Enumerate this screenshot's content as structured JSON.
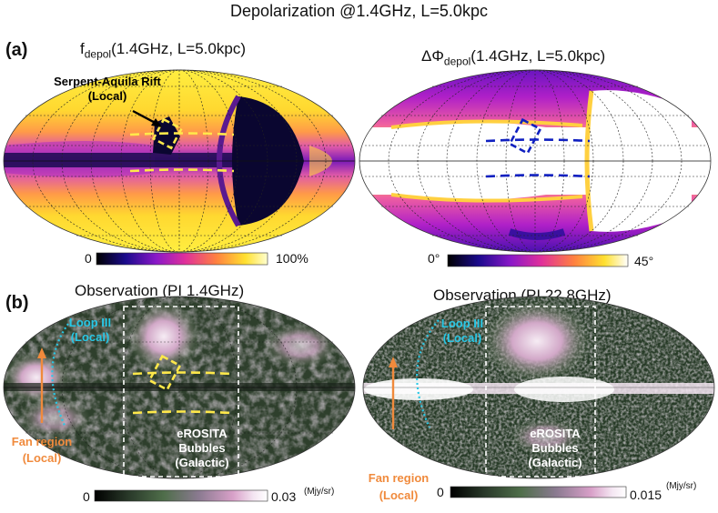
{
  "figure_title": "Depolarization @1.4GHz, L=5.0kpc",
  "panel_a": {
    "label": "(a)",
    "left_title_main": "f",
    "left_title_sub": "depol",
    "left_title_rest": "(1.4GHz, L=5.0kpc)",
    "right_title_main": "ΔΦ",
    "right_title_sub": "depol",
    "right_title_rest": "(1.4GHz, L=5.0kpc)",
    "annotation_line1": "Serpent-Aquila Rift",
    "annotation_line2": "(Local)",
    "left_colorbar_min": "0",
    "left_colorbar_max": "100%",
    "right_colorbar_min": "0°",
    "right_colorbar_max": "45°"
  },
  "panel_b": {
    "label": "(b)",
    "left_title": "Observation (PI 1.4GHz)",
    "right_title": "Observation (PI 22.8GHz)",
    "loop_line1": "Loop III",
    "loop_line2": "(Local)",
    "fan_line1": "Fan region",
    "fan_line2": "(Local)",
    "erosita_line1": "eROSITA",
    "erosita_line2": "Bubbles",
    "erosita_line3": "(Galactic)",
    "left_colorbar_min": "0",
    "left_colorbar_max": "0.03",
    "left_colorbar_unit": "(Mjy/sr)",
    "right_colorbar_min": "0",
    "right_colorbar_max": "0.015",
    "right_colorbar_unit": "(Mjy/sr)"
  },
  "colors": {
    "fdepol_map": [
      "#000000",
      "#1a0a8c",
      "#8a18c8",
      "#e0309a",
      "#ff8040",
      "#ffe030",
      "#ffffd0"
    ],
    "phase_map": [
      "#000000",
      "#1a0a8c",
      "#8a18c8",
      "#e0309a",
      "#ff8040",
      "#ffe030",
      "#ffffff"
    ],
    "obs_map": [
      "#000000",
      "#2a3a2a",
      "#4f6e4a",
      "#8a7a90",
      "#d8a0c8",
      "#f4e6f2",
      "#ffffff"
    ],
    "yellow_marker": "#ffe84a",
    "blue_marker": "#1020c0",
    "cyan_text": "#28c8e6",
    "orange_text": "#f08a3c"
  },
  "chart_data": [
    {
      "type": "heatmap",
      "title": "fdepol(1.4GHz, L=5.0kpc)",
      "projection": "Mollweide all-sky",
      "colorbar_range": [
        0,
        100
      ],
      "colorbar_unit": "%",
      "annotations": [
        "Serpent-Aquila Rift (Local)"
      ]
    },
    {
      "type": "heatmap",
      "title": "ΔΦdepol(1.4GHz, L=5.0kpc)",
      "projection": "Mollweide all-sky",
      "colorbar_range": [
        0,
        45
      ],
      "colorbar_unit": "deg"
    },
    {
      "type": "heatmap",
      "title": "Observation (PI 1.4GHz)",
      "projection": "Mollweide all-sky",
      "colorbar_range": [
        0,
        0.03
      ],
      "colorbar_unit": "Mjy/sr",
      "annotations": [
        "Loop III (Local)",
        "Fan region (Local)",
        "eROSITA Bubbles (Galactic)"
      ]
    },
    {
      "type": "heatmap",
      "title": "Observation (PI 22.8GHz)",
      "projection": "Mollweide all-sky",
      "colorbar_range": [
        0,
        0.015
      ],
      "colorbar_unit": "Mjy/sr",
      "annotations": [
        "Loop III (Local)",
        "Fan region (Local)",
        "eROSITA Bubbles (Galactic)"
      ]
    }
  ]
}
